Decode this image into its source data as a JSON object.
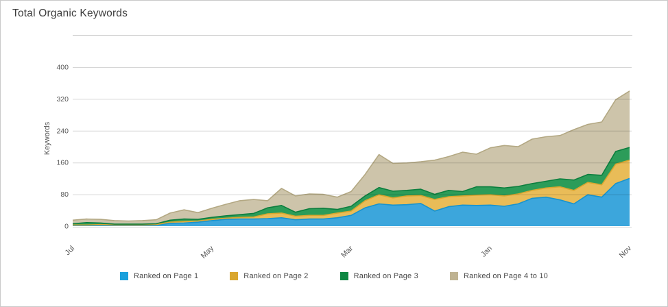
{
  "panel": {
    "title": "Total Organic Keywords"
  },
  "colors": {
    "border": "#c9c9c9",
    "grid": "#d7d7d7",
    "axis_text": "#555555",
    "title_text": "#3d3d3d",
    "legend_text": "#4a4a4a"
  },
  "chart_data": {
    "type": "area",
    "stacked": true,
    "title": "Total Organic Keywords",
    "xlabel": "",
    "ylabel": "Keywords",
    "ylim": [
      0,
      400
    ],
    "y_ticks": [
      0,
      80,
      160,
      240,
      320,
      400
    ],
    "grid": true,
    "legend_position": "bottom",
    "n_points": 41,
    "x_tick_labels": [
      {
        "index": 0,
        "label": "Jul"
      },
      {
        "index": 10,
        "label": "May"
      },
      {
        "index": 20,
        "label": "Mar"
      },
      {
        "index": 30,
        "label": "Jan"
      },
      {
        "index": 40,
        "label": "Nov"
      }
    ],
    "series": [
      {
        "name": "Ranked on Page 1",
        "color": "#1aa0dc",
        "fill": "#3ca6dc",
        "stroke": "#1793ce",
        "values": [
          2,
          2,
          3,
          2,
          2,
          2,
          3,
          7,
          8,
          10,
          14,
          17,
          18,
          18,
          19,
          21,
          16,
          18,
          18,
          21,
          27,
          46,
          56,
          53,
          54,
          57,
          38,
          49,
          53,
          52,
          53,
          50,
          56,
          70,
          73,
          66,
          56,
          79,
          73,
          107,
          120
        ]
      },
      {
        "name": "Ranked on Page 2",
        "color": "#d9a62f",
        "fill": "#e9bc58",
        "stroke": "#d9a62f",
        "values": [
          1,
          1,
          1,
          1,
          1,
          1,
          1,
          3,
          4,
          3,
          3,
          3,
          4,
          5,
          12,
          12,
          9,
          9,
          9,
          12,
          11,
          18,
          23,
          18,
          22,
          20,
          29,
          25,
          23,
          26,
          26,
          26,
          25,
          20,
          23,
          33,
          34,
          31,
          31,
          49,
          46
        ]
      },
      {
        "name": "Ranked on Page 3",
        "color": "#0e8742",
        "fill": "#2c9c59",
        "stroke": "#0c7e3e",
        "values": [
          3,
          6,
          4,
          2,
          2,
          2,
          2,
          5,
          6,
          4,
          5,
          6,
          7,
          9,
          15,
          19,
          10,
          17,
          18,
          9,
          12,
          12,
          18,
          17,
          14,
          16,
          13,
          16,
          11,
          21,
          20,
          20,
          19,
          17,
          17,
          20,
          26,
          20,
          24,
          32,
          32
        ]
      },
      {
        "name": "Ranked on Page 4 to 10",
        "color": "#bfb392",
        "fill": "#cdc4aa",
        "stroke": "#b3a883",
        "values": [
          9,
          9,
          9,
          9,
          8,
          9,
          10,
          18,
          23,
          17,
          23,
          29,
          35,
          35,
          18,
          43,
          41,
          37,
          35,
          31,
          37,
          54,
          83,
          70,
          69,
          69,
          86,
          85,
          99,
          82,
          98,
          107,
          100,
          112,
          112,
          109,
          127,
          126,
          134,
          130,
          142
        ]
      }
    ]
  }
}
